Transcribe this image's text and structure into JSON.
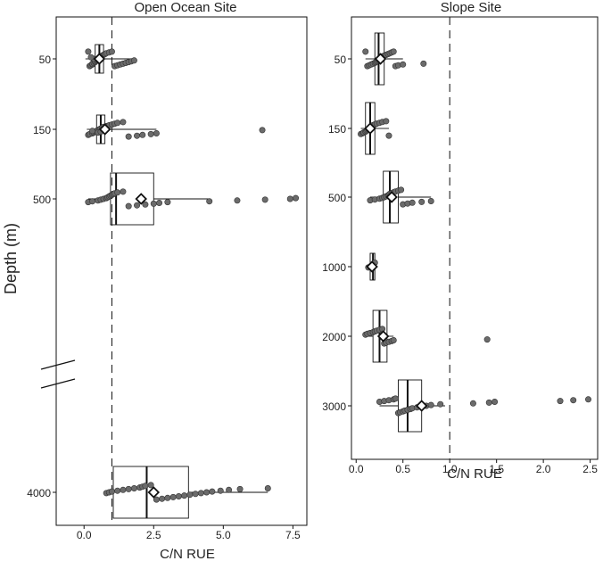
{
  "chart_data": [
    {
      "type": "boxplot",
      "title": "Open Ocean Site",
      "xlabel": "C/N RUE",
      "ylabel": "Depth (m)",
      "xlim": [
        -1.0,
        8.0
      ],
      "xticks": [
        0.0,
        2.5,
        5.0,
        7.5
      ],
      "xtick_labels": [
        "0.0",
        "2.5",
        "5.0",
        "7.5"
      ],
      "reference_line_x": 1.0,
      "axis_break": true,
      "groups": [
        {
          "depth": "50",
          "box": {
            "q1": 0.4,
            "median": 0.55,
            "q3": 0.7,
            "whisker_low": 0.05,
            "whisker_high": 1.8
          },
          "mean": 0.55,
          "points": [
            0.15,
            0.2,
            0.25,
            0.3,
            0.3,
            0.35,
            0.4,
            0.4,
            0.45,
            0.5,
            0.5,
            0.55,
            0.6,
            0.6,
            0.65,
            0.7,
            0.75,
            0.8,
            0.9,
            1.0,
            1.1,
            1.2,
            1.3,
            1.4,
            1.5,
            1.6,
            1.7,
            1.8,
            0.45,
            0.35,
            0.55,
            0.25
          ]
        },
        {
          "depth": "150",
          "box": {
            "q1": 0.45,
            "median": 0.6,
            "q3": 0.75,
            "whisker_low": 0.1,
            "whisker_high": 2.6
          },
          "mean": 0.75,
          "points": [
            0.15,
            0.2,
            0.3,
            0.35,
            0.4,
            0.45,
            0.5,
            0.55,
            0.6,
            0.65,
            0.7,
            0.8,
            0.9,
            1.0,
            1.1,
            1.2,
            1.4,
            1.6,
            1.9,
            2.1,
            2.4,
            2.6,
            0.5,
            0.6,
            0.3,
            6.4
          ]
        },
        {
          "depth": "500",
          "box": {
            "q1": 0.95,
            "median": 1.15,
            "q3": 2.5,
            "whisker_low": 0.15,
            "whisker_high": 4.5
          },
          "mean": 2.05,
          "points": [
            0.15,
            0.3,
            0.5,
            0.6,
            0.7,
            0.8,
            0.85,
            0.9,
            0.95,
            1.0,
            1.05,
            1.1,
            1.2,
            1.4,
            1.6,
            1.9,
            2.2,
            2.5,
            2.7,
            3.0,
            4.5,
            5.5,
            6.5,
            7.4,
            7.6
          ]
        },
        {
          "depth": "4000",
          "box": {
            "q1": 1.05,
            "median": 2.25,
            "q3": 3.75,
            "whisker_low": 0.8,
            "whisker_high": 6.6
          },
          "mean": 2.5,
          "points": [
            0.8,
            0.9,
            1.0,
            1.2,
            1.4,
            1.6,
            1.8,
            2.0,
            2.1,
            2.2,
            2.4,
            2.6,
            2.8,
            3.0,
            3.2,
            3.4,
            3.6,
            3.8,
            4.0,
            4.2,
            4.4,
            4.6,
            4.9,
            5.2,
            5.6,
            6.6
          ]
        }
      ]
    },
    {
      "type": "boxplot",
      "title": "Slope Site",
      "xlabel": "C/N RUE",
      "ylabel": "",
      "xlim": [
        -0.05,
        2.58
      ],
      "xticks": [
        0.0,
        0.5,
        1.0,
        1.5,
        2.0,
        2.5
      ],
      "xtick_labels": [
        "0.0",
        "0.5",
        "1.0",
        "1.5",
        "2.0",
        "2.5"
      ],
      "reference_line_x": 1.0,
      "groups": [
        {
          "depth": "50",
          "box": {
            "q1": 0.2,
            "median": 0.24,
            "q3": 0.3,
            "whisker_low": 0.1,
            "whisker_high": 0.5
          },
          "mean": 0.26,
          "points": [
            0.1,
            0.12,
            0.14,
            0.16,
            0.18,
            0.2,
            0.21,
            0.22,
            0.23,
            0.24,
            0.25,
            0.26,
            0.27,
            0.28,
            0.3,
            0.32,
            0.34,
            0.36,
            0.38,
            0.4,
            0.42,
            0.45,
            0.5,
            0.72
          ]
        },
        {
          "depth": "150",
          "box": {
            "q1": 0.1,
            "median": 0.15,
            "q3": 0.2,
            "whisker_low": 0.05,
            "whisker_high": 0.35
          },
          "mean": 0.15,
          "points": [
            0.05,
            0.07,
            0.08,
            0.1,
            0.11,
            0.12,
            0.13,
            0.14,
            0.15,
            0.16,
            0.17,
            0.18,
            0.2,
            0.22,
            0.25,
            0.28,
            0.32,
            0.35
          ]
        },
        {
          "depth": "500",
          "box": {
            "q1": 0.29,
            "median": 0.36,
            "q3": 0.45,
            "whisker_low": 0.15,
            "whisker_high": 0.8
          },
          "mean": 0.38,
          "points": [
            0.15,
            0.2,
            0.25,
            0.28,
            0.3,
            0.32,
            0.34,
            0.35,
            0.36,
            0.38,
            0.4,
            0.42,
            0.45,
            0.48,
            0.5,
            0.55,
            0.6,
            0.7,
            0.8
          ]
        },
        {
          "depth": "1000",
          "box": {
            "q1": 0.15,
            "median": 0.18,
            "q3": 0.2,
            "whisker_low": 0.13,
            "whisker_high": 0.21
          },
          "mean": 0.17,
          "points": [
            0.13,
            0.15,
            0.16,
            0.17,
            0.18,
            0.19,
            0.2
          ]
        },
        {
          "depth": "2000",
          "box": {
            "q1": 0.18,
            "median": 0.25,
            "q3": 0.33,
            "whisker_low": 0.1,
            "whisker_high": 0.4
          },
          "mean": 0.29,
          "points": [
            0.1,
            0.12,
            0.15,
            0.18,
            0.2,
            0.22,
            0.25,
            0.28,
            0.3,
            0.32,
            0.35,
            0.38,
            0.4,
            1.4
          ]
        },
        {
          "depth": "3000",
          "box": {
            "q1": 0.45,
            "median": 0.55,
            "q3": 0.7,
            "whisker_low": 0.25,
            "whisker_high": 0.95
          },
          "mean": 0.7,
          "points": [
            0.25,
            0.3,
            0.35,
            0.4,
            0.42,
            0.45,
            0.47,
            0.5,
            0.52,
            0.55,
            0.58,
            0.6,
            0.65,
            0.7,
            0.75,
            0.8,
            0.9,
            1.25,
            1.42,
            1.48,
            2.18,
            2.32,
            2.48
          ]
        }
      ]
    }
  ]
}
